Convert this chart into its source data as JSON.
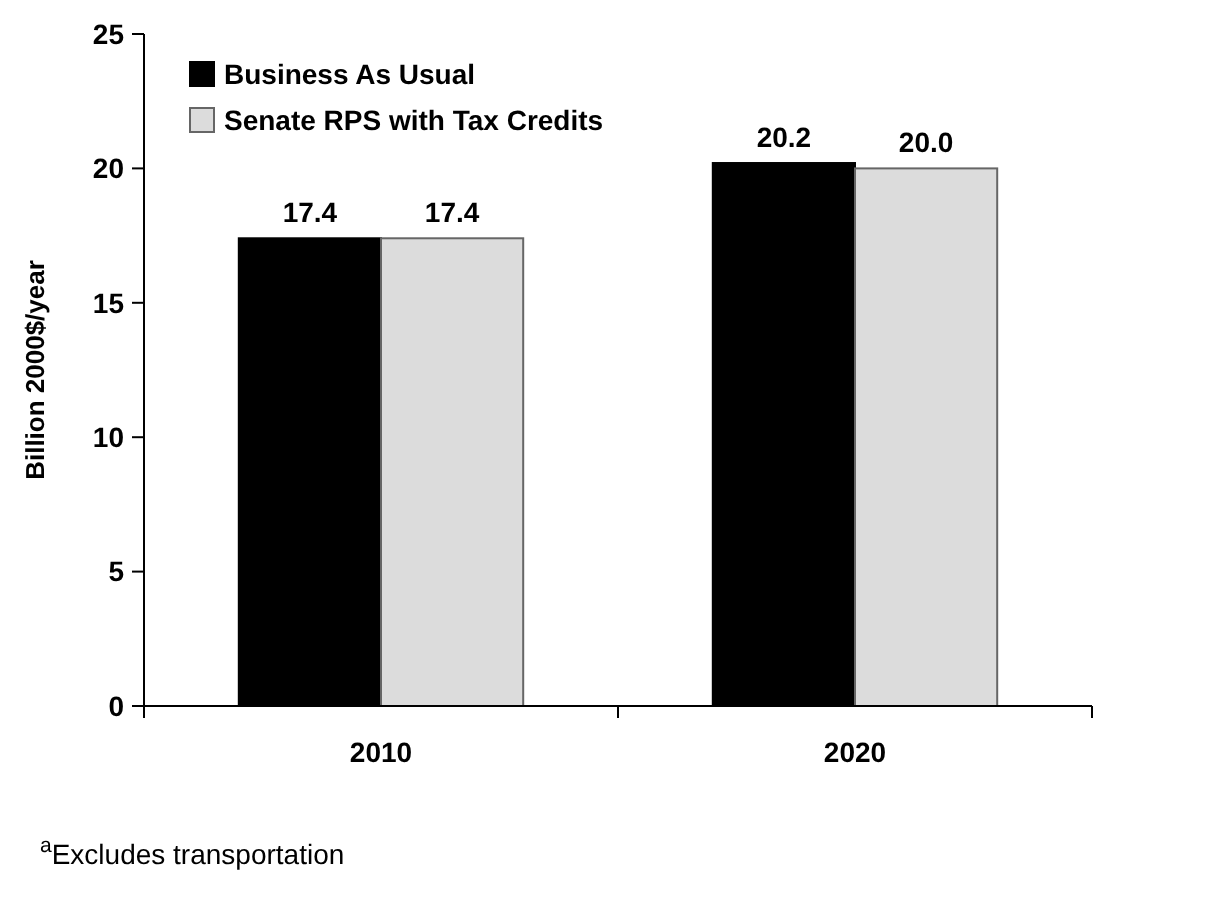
{
  "chart_data": {
    "type": "bar",
    "categories": [
      "2010",
      "2020"
    ],
    "ylabel": "Billion 2000$/year",
    "ylim": [
      0,
      25
    ],
    "yticks": [
      0,
      5,
      10,
      15,
      20,
      25
    ],
    "series": [
      {
        "name": "Business As Usual",
        "color": "#000000",
        "values": [
          17.4,
          20.2
        ]
      },
      {
        "name": "Senate RPS with Tax Credits",
        "color": "#dcdcdc",
        "values": [
          17.4,
          20.0
        ]
      }
    ],
    "value_labels": [
      [
        "17.4",
        "20.2"
      ],
      [
        "17.4",
        "20.0"
      ]
    ],
    "legend": "top left",
    "grid": false,
    "annotations": [
      "$^{a}$Excludes transportation"
    ]
  }
}
